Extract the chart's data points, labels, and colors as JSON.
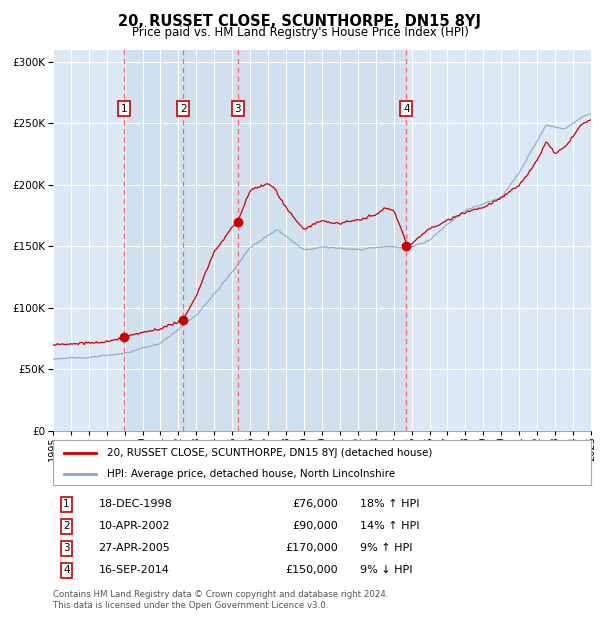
{
  "title": "20, RUSSET CLOSE, SCUNTHORPE, DN15 8YJ",
  "subtitle": "Price paid vs. HM Land Registry's House Price Index (HPI)",
  "footer1": "Contains HM Land Registry data © Crown copyright and database right 2024.",
  "footer2": "This data is licensed under the Open Government Licence v3.0.",
  "legend_house": "20, RUSSET CLOSE, SCUNTHORPE, DN15 8YJ (detached house)",
  "legend_hpi": "HPI: Average price, detached house, North Lincolnshire",
  "transactions": [
    {
      "num": 1,
      "date": "18-DEC-1998",
      "price": 76000,
      "pct": "18%",
      "dir": "↑",
      "year": 1998.96
    },
    {
      "num": 2,
      "date": "10-APR-2002",
      "price": 90000,
      "pct": "14%",
      "dir": "↑",
      "year": 2002.27
    },
    {
      "num": 3,
      "date": "27-APR-2005",
      "price": 170000,
      "pct": "9%",
      "dir": "↑",
      "year": 2005.32
    },
    {
      "num": 4,
      "date": "16-SEP-2014",
      "price": 150000,
      "pct": "9%",
      "dir": "↓",
      "year": 2014.71
    }
  ],
  "background_color": "#ffffff",
  "plot_bg_color": "#dce9f5",
  "grid_color": "#ffffff",
  "house_line_color": "#cc0000",
  "hpi_line_color": "#88aacc",
  "transaction_dot_color": "#cc0000",
  "dashed_line_color": "#ff6666",
  "shade_color": "#c8daea",
  "ylim": [
    0,
    310000
  ],
  "yticks": [
    0,
    50000,
    100000,
    150000,
    200000,
    250000,
    300000
  ],
  "year_start": 1995,
  "year_end": 2025,
  "hpi_keypoints": [
    [
      1995.0,
      58000
    ],
    [
      1997.0,
      60000
    ],
    [
      1999.0,
      64000
    ],
    [
      2001.0,
      72000
    ],
    [
      2003.0,
      95000
    ],
    [
      2005.0,
      130000
    ],
    [
      2006.0,
      150000
    ],
    [
      2007.5,
      165000
    ],
    [
      2009.0,
      148000
    ],
    [
      2010.0,
      150000
    ],
    [
      2012.0,
      148000
    ],
    [
      2014.0,
      150000
    ],
    [
      2014.7,
      148000
    ],
    [
      2016.0,
      155000
    ],
    [
      2017.0,
      168000
    ],
    [
      2018.0,
      180000
    ],
    [
      2019.0,
      185000
    ],
    [
      2020.0,
      190000
    ],
    [
      2021.0,
      210000
    ],
    [
      2022.5,
      248000
    ],
    [
      2023.5,
      245000
    ],
    [
      2024.5,
      255000
    ],
    [
      2025.0,
      258000
    ]
  ],
  "house_keypoints": [
    [
      1995.0,
      70000
    ],
    [
      1996.0,
      71000
    ],
    [
      1997.0,
      72000
    ],
    [
      1998.0,
      73000
    ],
    [
      1998.96,
      76000
    ],
    [
      1999.5,
      78000
    ],
    [
      2000.0,
      80000
    ],
    [
      2001.0,
      83000
    ],
    [
      2002.27,
      90000
    ],
    [
      2003.0,
      110000
    ],
    [
      2004.0,
      145000
    ],
    [
      2005.0,
      165000
    ],
    [
      2005.32,
      170000
    ],
    [
      2006.0,
      195000
    ],
    [
      2007.0,
      200000
    ],
    [
      2007.3,
      197000
    ],
    [
      2008.0,
      180000
    ],
    [
      2009.0,
      162000
    ],
    [
      2010.0,
      168000
    ],
    [
      2011.0,
      165000
    ],
    [
      2012.0,
      168000
    ],
    [
      2013.0,
      172000
    ],
    [
      2013.5,
      178000
    ],
    [
      2014.0,
      176000
    ],
    [
      2014.71,
      150000
    ],
    [
      2015.0,
      148000
    ],
    [
      2015.5,
      155000
    ],
    [
      2016.0,
      160000
    ],
    [
      2017.0,
      168000
    ],
    [
      2018.0,
      175000
    ],
    [
      2019.0,
      178000
    ],
    [
      2020.0,
      185000
    ],
    [
      2021.0,
      195000
    ],
    [
      2022.0,
      215000
    ],
    [
      2022.5,
      230000
    ],
    [
      2023.0,
      220000
    ],
    [
      2023.5,
      225000
    ],
    [
      2024.0,
      235000
    ],
    [
      2024.5,
      245000
    ],
    [
      2025.0,
      248000
    ]
  ]
}
